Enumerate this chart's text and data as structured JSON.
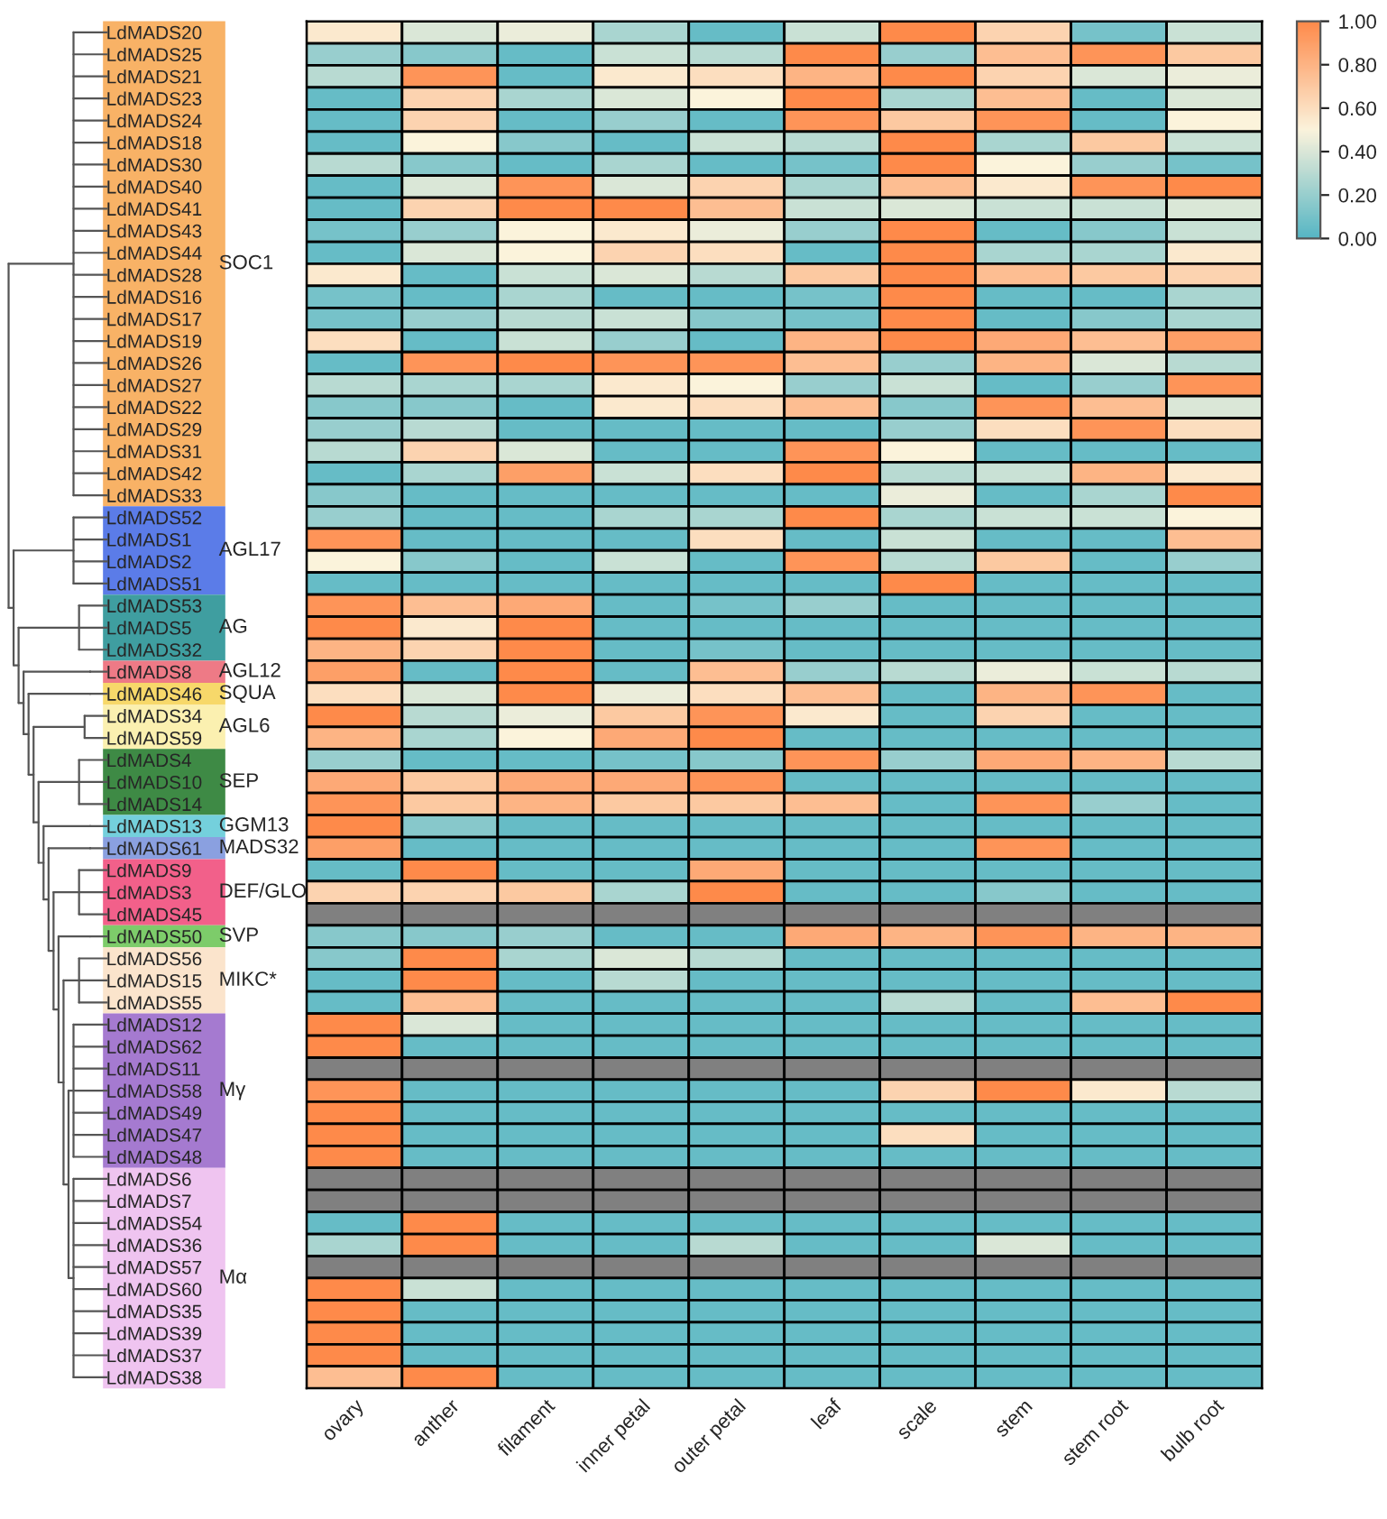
{
  "chart_data": {
    "type": "heatmap",
    "categories": [
      "ovary",
      "anther",
      "filament",
      "inner petal",
      "outer petal",
      "leaf",
      "scale",
      "stem",
      "stem root",
      "bulb root"
    ],
    "y_categories": [
      "LdMADS20",
      "LdMADS25",
      "LdMADS21",
      "LdMADS23",
      "LdMADS24",
      "LdMADS18",
      "LdMADS30",
      "LdMADS40",
      "LdMADS41",
      "LdMADS43",
      "LdMADS44",
      "LdMADS28",
      "LdMADS16",
      "LdMADS17",
      "LdMADS19",
      "LdMADS26",
      "LdMADS27",
      "LdMADS22",
      "LdMADS29",
      "LdMADS31",
      "LdMADS42",
      "LdMADS33",
      "LdMADS52",
      "LdMADS1",
      "LdMADS2",
      "LdMADS51",
      "LdMADS53",
      "LdMADS5",
      "LdMADS32",
      "LdMADS8",
      "LdMADS46",
      "LdMADS34",
      "LdMADS59",
      "LdMADS4",
      "LdMADS10",
      "LdMADS14",
      "LdMADS13",
      "LdMADS61",
      "LdMADS9",
      "LdMADS3",
      "LdMADS45",
      "LdMADS50",
      "LdMADS56",
      "LdMADS15",
      "LdMADS55",
      "LdMADS12",
      "LdMADS62",
      "LdMADS11",
      "LdMADS58",
      "LdMADS49",
      "LdMADS47",
      "LdMADS48",
      "LdMADS6",
      "LdMADS7",
      "LdMADS54",
      "LdMADS36",
      "LdMADS57",
      "LdMADS60",
      "LdMADS35",
      "LdMADS39",
      "LdMADS37",
      "LdMADS38"
    ],
    "cells": [
      [
        0.55,
        0.4,
        0.45,
        0.25,
        0.05,
        0.35,
        1,
        0.65,
        0.1,
        0.35
      ],
      [
        0.2,
        0.15,
        0.05,
        0.35,
        0.3,
        1,
        0.2,
        0.75,
        0.95,
        0.7
      ],
      [
        0.3,
        0.95,
        0.05,
        0.55,
        0.6,
        0.8,
        1,
        0.65,
        0.4,
        0.45
      ],
      [
        0.05,
        0.65,
        0.25,
        0.4,
        0.5,
        1,
        0.25,
        0.75,
        0.05,
        0.4
      ],
      [
        0.05,
        0.65,
        0.05,
        0.2,
        0.05,
        0.95,
        0.7,
        0.95,
        0.05,
        0.5
      ],
      [
        0.05,
        0.5,
        0.15,
        0.05,
        0.35,
        0.3,
        1,
        0.25,
        0.7,
        0.35
      ],
      [
        0.3,
        0.15,
        0.05,
        0.25,
        0.05,
        0.1,
        1,
        0.5,
        0.2,
        0.1
      ],
      [
        0.05,
        0.4,
        0.95,
        0.4,
        0.65,
        0.25,
        0.75,
        0.55,
        0.95,
        1
      ],
      [
        0.05,
        0.65,
        1,
        1,
        0.75,
        0.35,
        0.4,
        0.35,
        0.35,
        0.4
      ],
      [
        0.1,
        0.2,
        0.5,
        0.55,
        0.45,
        0.2,
        1,
        0.05,
        0.15,
        0.35
      ],
      [
        0.05,
        0.4,
        0.5,
        0.65,
        0.6,
        0.05,
        1,
        0.25,
        0.25,
        0.55
      ],
      [
        0.55,
        0.05,
        0.35,
        0.4,
        0.3,
        0.7,
        1,
        0.75,
        0.7,
        0.65
      ],
      [
        0.1,
        0.05,
        0.25,
        0.05,
        0.05,
        0.1,
        1,
        0.05,
        0.05,
        0.25
      ],
      [
        0.1,
        0.2,
        0.3,
        0.35,
        0.15,
        0.1,
        1,
        0.05,
        0.15,
        0.25
      ],
      [
        0.6,
        0.05,
        0.35,
        0.2,
        0.05,
        0.8,
        1,
        0.85,
        0.75,
        0.9
      ],
      [
        0.05,
        0.95,
        1,
        0.95,
        0.95,
        0.75,
        0.2,
        0.8,
        0.4,
        0.3
      ],
      [
        0.3,
        0.25,
        0.25,
        0.55,
        0.5,
        0.2,
        0.35,
        0.05,
        0.2,
        0.95
      ],
      [
        0.15,
        0.15,
        0.05,
        0.55,
        0.6,
        0.75,
        0.15,
        0.95,
        0.75,
        0.4
      ],
      [
        0.2,
        0.3,
        0.05,
        0.05,
        0.05,
        0.05,
        0.2,
        0.6,
        0.95,
        0.6
      ],
      [
        0.3,
        0.65,
        0.4,
        0.05,
        0.05,
        0.95,
        0.5,
        0.05,
        0.05,
        0.05
      ],
      [
        0.05,
        0.25,
        0.9,
        0.35,
        0.6,
        1,
        0.3,
        0.35,
        0.8,
        0.55
      ],
      [
        0.15,
        0.05,
        0.05,
        0.05,
        0.05,
        0.05,
        0.45,
        0.05,
        0.25,
        1
      ],
      [
        0.2,
        0.05,
        0.05,
        0.25,
        0.25,
        1,
        0.25,
        0.35,
        0.35,
        0.5
      ],
      [
        0.95,
        0.05,
        0.05,
        0.05,
        0.6,
        0.05,
        0.35,
        0.05,
        0.05,
        0.75
      ],
      [
        0.5,
        0.15,
        0.05,
        0.35,
        0.05,
        0.95,
        0.3,
        0.7,
        0.05,
        0.2
      ],
      [
        0.05,
        0.05,
        0.05,
        0.05,
        0.05,
        0.05,
        1,
        0.05,
        0.05,
        0.05
      ],
      [
        0.95,
        0.75,
        0.85,
        0.05,
        0.1,
        0.2,
        0.05,
        0.05,
        0.05,
        0.05
      ],
      [
        1,
        0.55,
        1,
        0.05,
        0.05,
        0.05,
        0.05,
        0.05,
        0.05,
        0.05
      ],
      [
        0.8,
        0.65,
        1,
        0.05,
        0.1,
        0.05,
        0.05,
        0.05,
        0.05,
        0.05
      ],
      [
        0.9,
        0.05,
        1,
        0.05,
        0.75,
        0.2,
        0.3,
        0.45,
        0.35,
        0.3
      ],
      [
        0.6,
        0.4,
        1,
        0.45,
        0.6,
        0.75,
        0.05,
        0.8,
        0.95,
        0.05
      ],
      [
        1,
        0.3,
        0.45,
        0.7,
        0.95,
        0.55,
        0.05,
        0.65,
        0.05,
        0.05
      ],
      [
        0.8,
        0.25,
        0.5,
        0.85,
        1,
        0.05,
        0.05,
        0.05,
        0.05,
        0.05
      ],
      [
        0.2,
        0.05,
        0.05,
        0.1,
        0.15,
        0.95,
        0.2,
        0.85,
        0.8,
        0.3
      ],
      [
        0.85,
        0.7,
        0.85,
        0.85,
        0.95,
        0.05,
        0.05,
        0.05,
        0.05,
        0.05
      ],
      [
        0.95,
        0.7,
        0.8,
        0.7,
        0.7,
        0.75,
        0.05,
        0.95,
        0.2,
        0.05
      ],
      [
        1,
        0.15,
        0.05,
        0.05,
        0.05,
        0.05,
        0.05,
        0.05,
        0.05,
        0.05
      ],
      [
        0.9,
        0.05,
        0.05,
        0.05,
        0.05,
        0.05,
        0.05,
        0.95,
        0.05,
        0.05
      ],
      [
        0.05,
        1,
        0.05,
        0.05,
        0.85,
        0.05,
        0.05,
        0.05,
        0.05,
        0.05
      ],
      [
        0.65,
        0.65,
        0.7,
        0.25,
        1,
        0.05,
        0.05,
        0.15,
        0.05,
        0.05
      ],
      [
        null,
        null,
        null,
        null,
        null,
        null,
        null,
        null,
        null,
        null
      ],
      [
        0.15,
        0.15,
        0.2,
        0.05,
        0.05,
        0.85,
        0.8,
        0.95,
        0.8,
        0.8
      ],
      [
        0.15,
        1,
        0.25,
        0.4,
        0.3,
        0.05,
        0.05,
        0.05,
        0.05,
        0.05
      ],
      [
        0.05,
        1,
        0.05,
        0.3,
        0.05,
        0.05,
        0.05,
        0.05,
        0.05,
        0.05
      ],
      [
        0.05,
        0.75,
        0.05,
        0.05,
        0.05,
        0.05,
        0.3,
        0.05,
        0.75,
        1
      ],
      [
        1,
        0.4,
        0.05,
        0.05,
        0.05,
        0.05,
        0.05,
        0.05,
        0.05,
        0.05
      ],
      [
        1,
        0.05,
        0.05,
        0.05,
        0.05,
        0.05,
        0.05,
        0.05,
        0.05,
        0.05
      ],
      [
        null,
        null,
        null,
        null,
        null,
        null,
        null,
        null,
        null,
        null
      ],
      [
        0.95,
        0.05,
        0.05,
        0.05,
        0.05,
        0.05,
        0.65,
        1,
        0.55,
        0.3
      ],
      [
        1,
        0.05,
        0.05,
        0.05,
        0.05,
        0.05,
        0.05,
        0.05,
        0.05,
        0.05
      ],
      [
        1,
        0.05,
        0.05,
        0.05,
        0.05,
        0.05,
        0.6,
        0.05,
        0.05,
        0.05
      ],
      [
        1,
        0.05,
        0.05,
        0.05,
        0.05,
        0.05,
        0.05,
        0.05,
        0.05,
        0.05
      ],
      [
        null,
        null,
        null,
        null,
        null,
        null,
        null,
        null,
        null,
        null
      ],
      [
        null,
        null,
        null,
        null,
        null,
        null,
        null,
        null,
        null,
        null
      ],
      [
        0.05,
        1,
        0.05,
        0.05,
        0.05,
        0.05,
        0.05,
        0.05,
        0.05,
        0.05
      ],
      [
        0.25,
        1,
        0.05,
        0.05,
        0.3,
        0.05,
        0.05,
        0.4,
        0.05,
        0.05
      ],
      [
        null,
        null,
        null,
        null,
        null,
        null,
        null,
        null,
        null,
        null
      ],
      [
        1,
        0.35,
        0.05,
        0.05,
        0.05,
        0.05,
        0.05,
        0.05,
        0.05,
        0.05
      ],
      [
        1,
        0.05,
        0.05,
        0.05,
        0.05,
        0.05,
        0.05,
        0.05,
        0.05,
        0.05
      ],
      [
        1,
        0.05,
        0.05,
        0.05,
        0.05,
        0.05,
        0.05,
        0.05,
        0.05,
        0.05
      ],
      [
        1,
        0.05,
        0.05,
        0.05,
        0.05,
        0.05,
        0.05,
        0.05,
        0.05,
        0.05
      ],
      [
        0.75,
        1,
        0.05,
        0.05,
        0.05,
        0.05,
        0.05,
        0.05,
        0.05,
        0.05
      ]
    ],
    "clim": [
      0,
      1
    ],
    "cticks": [
      {
        "value": 0,
        "label": "0.00"
      },
      {
        "value": 0.2,
        "label": "0.20"
      },
      {
        "value": 0.4,
        "label": "0.40"
      },
      {
        "value": 0.6,
        "label": "0.60"
      },
      {
        "value": 0.8,
        "label": "0.80"
      },
      {
        "value": 1,
        "label": "1.00"
      }
    ],
    "annotations": [
      "SOC1",
      "AGL17",
      "AG",
      "AGL12",
      "SQUA",
      "AGL6",
      "SEP",
      "GGM13",
      "MADS32",
      "DEF/GLO",
      "SVP",
      "MIKC*",
      "Mγ",
      "Mα"
    ]
  }
}
